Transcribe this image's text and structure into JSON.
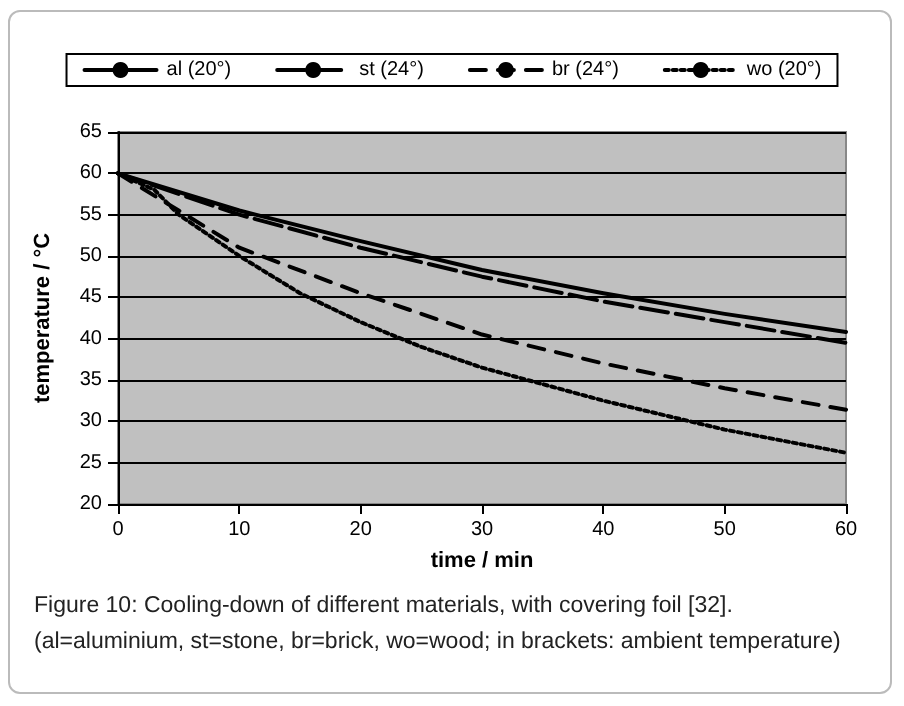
{
  "chart_data": {
    "type": "line",
    "xlabel": "time / min",
    "ylabel": "temperature / °C",
    "annotations": [
      "Figure 10: Cooling-down of different materials, with covering foil [32].",
      "(al=aluminium, st=stone, br=brick, wo=wood; in brackets: ambient temperature)"
    ],
    "series": [
      {
        "name": "al (20°)",
        "color": "#000000",
        "line_style": "solid",
        "x": [
          0,
          10,
          20,
          30,
          40,
          50,
          60
        ],
        "values": [
          60,
          55.5,
          51.8,
          48.3,
          45.5,
          43,
          40.8
        ]
      },
      {
        "name": "st (24°)",
        "color": "#000000",
        "line_style": "dashed",
        "x": [
          0,
          10,
          20,
          30,
          40,
          50,
          60
        ],
        "values": [
          60,
          55,
          51,
          47.5,
          44.5,
          42,
          39.5
        ]
      },
      {
        "name": "br (24°)",
        "color": "#000000",
        "line_style": "dashed",
        "x": [
          0,
          5,
          10,
          20,
          30,
          40,
          50,
          60
        ],
        "values": [
          60,
          55.5,
          51,
          45.5,
          40.5,
          37,
          34,
          31.4
        ]
      },
      {
        "name": "wo (20°)",
        "color": "#000000",
        "line_style": "dotted",
        "x": [
          0,
          3,
          5,
          10,
          15,
          20,
          25,
          30,
          40,
          50,
          60
        ],
        "values": [
          60,
          58,
          55,
          50,
          45.5,
          42,
          39,
          36.5,
          32.5,
          29,
          26.2
        ]
      }
    ],
    "xlim": [
      0,
      60
    ],
    "xticks": [
      0,
      10,
      20,
      30,
      40,
      50,
      60
    ],
    "ylim": [
      20,
      65
    ],
    "yticks": [
      20,
      25,
      30,
      35,
      40,
      45,
      50,
      55,
      60,
      65
    ],
    "grid": "y",
    "legend": "top",
    "marker": "none"
  }
}
